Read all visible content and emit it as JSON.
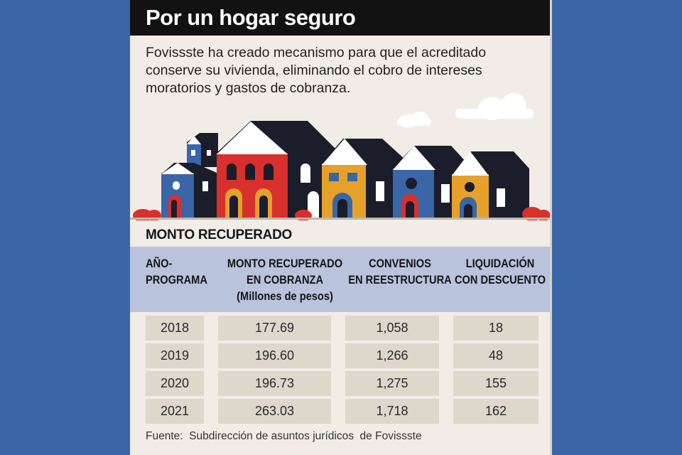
{
  "title": "Por un hogar seguro",
  "subtitle": "Fovissste ha creado mecanismo para que el acreditado conserve su vivienda, eliminando el cobro de intereses moratorios y gastos de cobranza.",
  "illustration": "houses-illustration",
  "colors": {
    "header": "#121212",
    "panel": "#f1ede6",
    "table_header": "#b9c3dc",
    "cell": "#ddd7cc",
    "house_red": "#d8302c",
    "house_blue": "#3a66a7",
    "house_yellow": "#e6a12a",
    "house_dark": "#1b1d2a"
  },
  "section_title": "MONTO RECUPERADO",
  "table": {
    "headers": [
      [
        "AÑO-",
        "PROGRAMA"
      ],
      [
        "MONTO RECUPERADO",
        "EN COBRANZA",
        "(Millones de pesos)"
      ],
      [
        "CONVENIOS",
        "EN REESTRUCTURA"
      ],
      [
        "LIQUIDACIÓN",
        "CON DESCUENTO"
      ]
    ],
    "rows": [
      [
        "2018",
        "177.69",
        "1,058",
        "18"
      ],
      [
        "2019",
        "196.60",
        "1,266",
        "48"
      ],
      [
        "2020",
        "196.73",
        "1,275",
        "155"
      ],
      [
        "2021",
        "263.03",
        "1,718",
        "162"
      ]
    ]
  },
  "source": "Fuente:  Subdirección de asuntos jurídicos  de Fovissste"
}
